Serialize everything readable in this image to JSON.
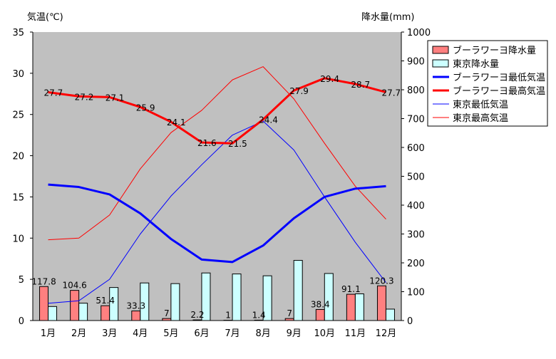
{
  "chart_data": {
    "type": "bar+line",
    "categories": [
      "1月",
      "2月",
      "3月",
      "4月",
      "5月",
      "6月",
      "7月",
      "8月",
      "9月",
      "10月",
      "11月",
      "12月"
    ],
    "y_left": {
      "label": "気温(℃)",
      "min": 0,
      "max": 35,
      "ticks": [
        0,
        5,
        10,
        15,
        20,
        25,
        30,
        35
      ]
    },
    "y_right": {
      "label": "降水量(mm)",
      "min": 0,
      "max": 1000,
      "ticks": [
        0,
        100,
        200,
        300,
        400,
        500,
        600,
        700,
        800,
        900,
        1000
      ]
    },
    "grid": false,
    "legend_position": "top-right",
    "series": [
      {
        "name": "ブーラワーヨ降水量",
        "type": "bar",
        "axis": "right",
        "color": "#ff8080",
        "values": [
          117.8,
          104.6,
          51.4,
          33.3,
          7,
          2.2,
          1,
          1.4,
          7,
          38.4,
          91.1,
          120.3
        ],
        "labels": [
          "117.8",
          "104.6",
          "51.4",
          "33.3",
          "7",
          "2.2",
          "1",
          "1.4",
          "7",
          "38.4",
          "91.1",
          "120.3"
        ]
      },
      {
        "name": "東京降水量",
        "type": "bar",
        "axis": "right",
        "color": "#ccffff",
        "values": [
          48.6,
          60.2,
          114.5,
          130.3,
          128,
          164.9,
          161.5,
          155.1,
          208.5,
          163.1,
          92.5,
          39.6
        ]
      },
      {
        "name": "ブーラワーヨ最低気温",
        "type": "line",
        "axis": "left",
        "color": "#0000ff",
        "width": 3,
        "values": [
          16.5,
          16.2,
          15.3,
          13.0,
          9.9,
          7.4,
          7.1,
          9.1,
          12.4,
          15.0,
          16.0,
          16.3
        ]
      },
      {
        "name": "ブーラワーヨ最高気温",
        "type": "line",
        "axis": "left",
        "color": "#ff0000",
        "width": 3,
        "values": [
          27.7,
          27.2,
          27.1,
          25.9,
          24.1,
          21.6,
          21.5,
          24.4,
          27.9,
          29.4,
          28.7,
          27.7
        ],
        "labels": [
          "27.7",
          "27.2",
          "27.1",
          "25.9",
          "24.1",
          "21.6",
          "21.5",
          "24.4",
          "27.9",
          "29.4",
          "28.7",
          "27.7"
        ]
      },
      {
        "name": "東京最低気温",
        "type": "line",
        "axis": "left",
        "color": "#0000ff",
        "width": 1,
        "values": [
          2.1,
          2.4,
          5.0,
          10.5,
          15.1,
          18.9,
          22.5,
          24.2,
          20.7,
          15.0,
          9.5,
          4.6
        ]
      },
      {
        "name": "東京最高気温",
        "type": "line",
        "axis": "left",
        "color": "#ff0000",
        "width": 1,
        "values": [
          9.8,
          10.0,
          12.8,
          18.4,
          22.8,
          25.5,
          29.2,
          30.8,
          26.9,
          21.5,
          16.3,
          12.3
        ]
      }
    ]
  }
}
